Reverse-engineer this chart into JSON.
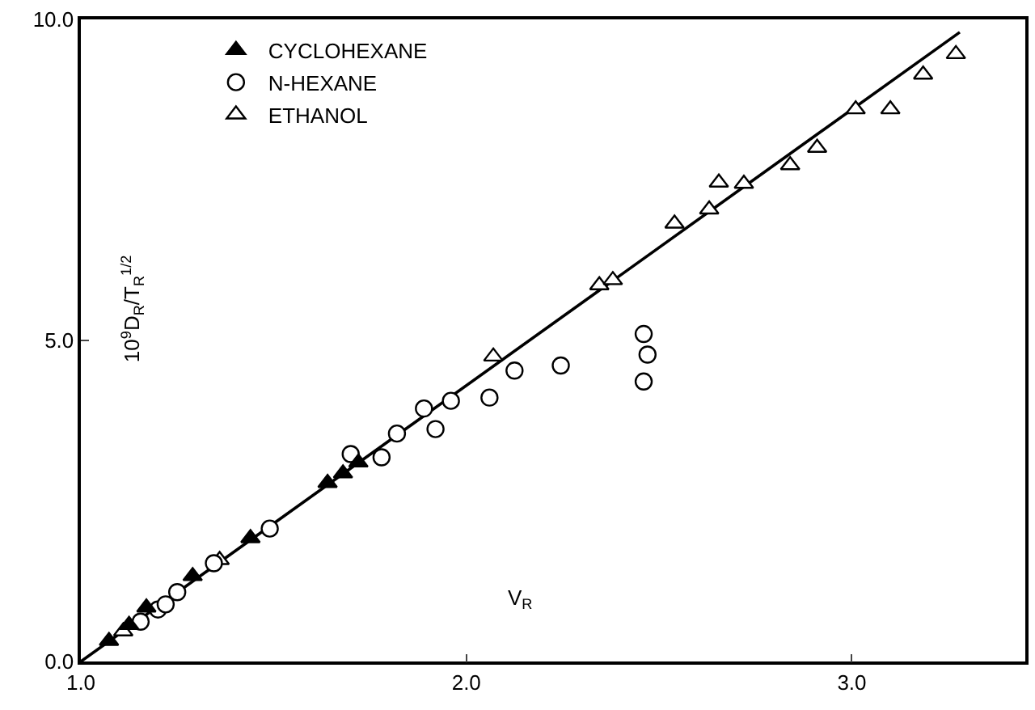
{
  "chart_data": {
    "type": "scatter",
    "xlabel": "V$_{R}$",
    "ylabel": "10$^{9}$D$_{R}$/T$_{R}$$^{1/2}$",
    "xlim": [
      1.0,
      3.45
    ],
    "ylim": [
      0,
      10
    ],
    "xticks": [
      {
        "value": 1.0,
        "label": "1.0"
      },
      {
        "value": 2.0,
        "label": "2.0"
      },
      {
        "value": 3.0,
        "label": "3.0"
      }
    ],
    "yticks": [
      {
        "value": 0,
        "label": "0.0"
      },
      {
        "value": 5,
        "label": "5.0"
      },
      {
        "value": 10,
        "label": "10.0"
      }
    ],
    "legend": "top left",
    "series": [
      {
        "name": "CYCLOHEXANE",
        "color": "#000000",
        "marker": "triangle",
        "x": [
          1.073,
          1.125,
          1.17,
          1.29,
          1.44,
          1.64,
          1.68,
          1.72
        ],
        "values": [
          0.32,
          0.57,
          0.84,
          1.33,
          1.92,
          2.78,
          2.93,
          3.1
        ]
      },
      {
        "name": "N-HEXANE",
        "color": "#ffffff",
        "marker": "circle",
        "x": [
          1.155,
          1.2,
          1.22,
          1.25,
          1.345,
          1.49,
          1.7,
          1.78,
          1.82,
          1.89,
          1.92,
          1.96,
          2.06,
          2.125,
          2.245,
          2.46,
          2.47,
          2.46
        ],
        "values": [
          0.62,
          0.81,
          0.89,
          1.08,
          1.53,
          2.07,
          3.23,
          3.18,
          3.55,
          3.94,
          3.62,
          4.06,
          4.11,
          4.53,
          4.61,
          4.36,
          4.78,
          5.1
        ]
      },
      {
        "name": "ETHANOL",
        "color": "#ffffff",
        "marker": "triangle",
        "x": [
          1.11,
          1.36,
          2.07,
          2.345,
          2.38,
          2.54,
          2.63,
          2.655,
          2.72,
          2.84,
          2.91,
          3.01,
          3.1,
          3.185,
          3.27
        ],
        "values": [
          0.47,
          1.58,
          4.75,
          5.86,
          5.94,
          6.82,
          7.04,
          7.46,
          7.44,
          7.73,
          8.0,
          8.6,
          8.6,
          9.14,
          9.46
        ]
      },
      {
        "type": "line",
        "color": "#000000",
        "line_style": "solid",
        "x": [
          1.0,
          3.28
        ],
        "values": [
          0,
          9.8
        ]
      }
    ]
  }
}
